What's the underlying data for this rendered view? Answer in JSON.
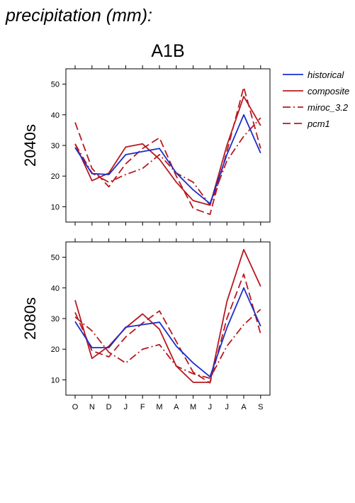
{
  "page_title": "precipitation (mm):",
  "scenario": "A1B",
  "colors": {
    "historical": "#1a2fc8",
    "composite": "#b8191f",
    "miroc_3.2": "#b8191f",
    "pcm1": "#b8191f"
  },
  "legend": [
    {
      "name": "historical",
      "style": "solid"
    },
    {
      "name": "composite",
      "style": "solid"
    },
    {
      "name": "miroc_3.2",
      "style": "dashdot"
    },
    {
      "name": "pcm1",
      "style": "longdash"
    }
  ],
  "chart_data": [
    {
      "type": "line",
      "label": "2040s",
      "categories": [
        "O",
        "N",
        "D",
        "J",
        "F",
        "M",
        "A",
        "M",
        "J",
        "J",
        "A",
        "S"
      ],
      "yticks": [
        10,
        20,
        30,
        40,
        50
      ],
      "ylim": [
        5,
        55
      ],
      "grid": false,
      "legend_position": "right",
      "series": [
        {
          "name": "historical",
          "style": "solid",
          "values": [
            29.3,
            20.8,
            20.5,
            27,
            28,
            29,
            21,
            15.5,
            11,
            27,
            40,
            27.5
          ]
        },
        {
          "name": "composite",
          "style": "solid",
          "values": [
            30.5,
            18.5,
            21,
            29.5,
            30.5,
            25.5,
            18,
            12,
            10.5,
            30,
            46,
            36.5
          ]
        },
        {
          "name": "miroc_3.2",
          "style": "dashdot",
          "values": [
            30.5,
            21,
            18,
            20.5,
            22.5,
            27,
            21,
            18,
            10.5,
            25,
            33,
            39
          ]
        },
        {
          "name": "pcm1",
          "style": "longdash",
          "values": [
            37.5,
            22.5,
            16.5,
            24,
            29,
            32.5,
            20,
            9.5,
            7.5,
            28,
            49,
            29
          ]
        }
      ]
    },
    {
      "type": "line",
      "label": "2080s",
      "categories": [
        "O",
        "N",
        "D",
        "J",
        "F",
        "M",
        "A",
        "M",
        "J",
        "J",
        "A",
        "S"
      ],
      "yticks": [
        10,
        20,
        30,
        40,
        50
      ],
      "ylim": [
        5,
        55
      ],
      "grid": false,
      "legend_position": "right",
      "series": [
        {
          "name": "historical",
          "style": "solid",
          "values": [
            29,
            20.5,
            20.5,
            27.2,
            28,
            28.8,
            21,
            15.5,
            11,
            27,
            40,
            27.5
          ]
        },
        {
          "name": "composite",
          "style": "solid",
          "values": [
            36,
            17,
            21,
            27,
            31.5,
            26.5,
            14.5,
            9.2,
            9.2,
            35.5,
            52.5,
            40.5
          ]
        },
        {
          "name": "miroc_3.2",
          "style": "dashdot",
          "values": [
            30.5,
            26,
            19,
            15.5,
            20,
            21.5,
            14.5,
            12,
            10.5,
            21,
            28,
            33
          ]
        },
        {
          "name": "pcm1",
          "style": "longdash",
          "values": [
            32,
            19.5,
            17.5,
            24,
            28.5,
            32.5,
            22.5,
            12.5,
            9,
            30,
            44.5,
            25
          ]
        }
      ]
    }
  ]
}
